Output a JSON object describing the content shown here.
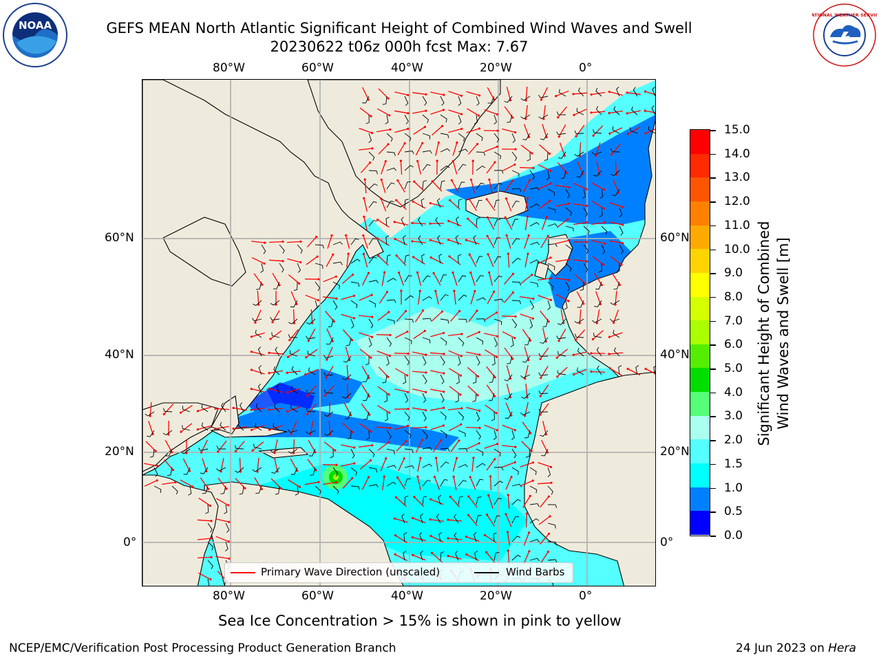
{
  "header": {
    "title_line1": "GEFS MEAN North Atlantic Significant Height of Combined Wind Waves and Swell",
    "title_line2": "20230622 t06z 000h fcst   Max: 7.67"
  },
  "logos": {
    "left": {
      "name": "noaa-logo",
      "text": "NOAA"
    },
    "right": {
      "name": "national-weather-service-logo",
      "text": "NATIONAL WEATHER SERVICE"
    }
  },
  "map": {
    "lon_labels": [
      "80°W",
      "60°W",
      "40°W",
      "20°W",
      "0°"
    ],
    "lat_labels": [
      "60°N",
      "40°N",
      "20°N",
      "0°"
    ],
    "legend": {
      "wave_label": "Primary Wave Direction (unscaled)",
      "barb_label": "Wind Barbs",
      "wave_color": "#ff0000",
      "barb_color": "#000000"
    },
    "land_color": "#efebdc"
  },
  "colorbar": {
    "label": "Significant Height of Combined Wind Waves and Swell [m]",
    "label_line1": "Significant Height of Combined",
    "label_line2": "Wind Waves and Swell [m]",
    "ticks": [
      "15.0",
      "14.0",
      "13.0",
      "12.0",
      "11.0",
      "10.0",
      "9.0",
      "8.0",
      "7.0",
      "6.0",
      "5.0",
      "4.0",
      "3.0",
      "2.0",
      "1.5",
      "1.0",
      "0.5",
      "0.0"
    ],
    "colors_top_to_bottom": [
      "#ff0000",
      "#ff2a00",
      "#ff5500",
      "#ff8000",
      "#ffaa00",
      "#ffd400",
      "#ffff00",
      "#d4ff00",
      "#aaff00",
      "#55ee00",
      "#00dd00",
      "#55ff77",
      "#aaffee",
      "#55ffff",
      "#00ffff",
      "#0080ff",
      "#0000ff"
    ]
  },
  "caption": "Sea Ice Concentration > 15% is shown in pink to yellow",
  "footer": {
    "left": "NCEP/EMC/Verification Post Processing Product Generation Branch",
    "right_prefix": "24 Jun 2023 on ",
    "right_machine": "Hera"
  }
}
